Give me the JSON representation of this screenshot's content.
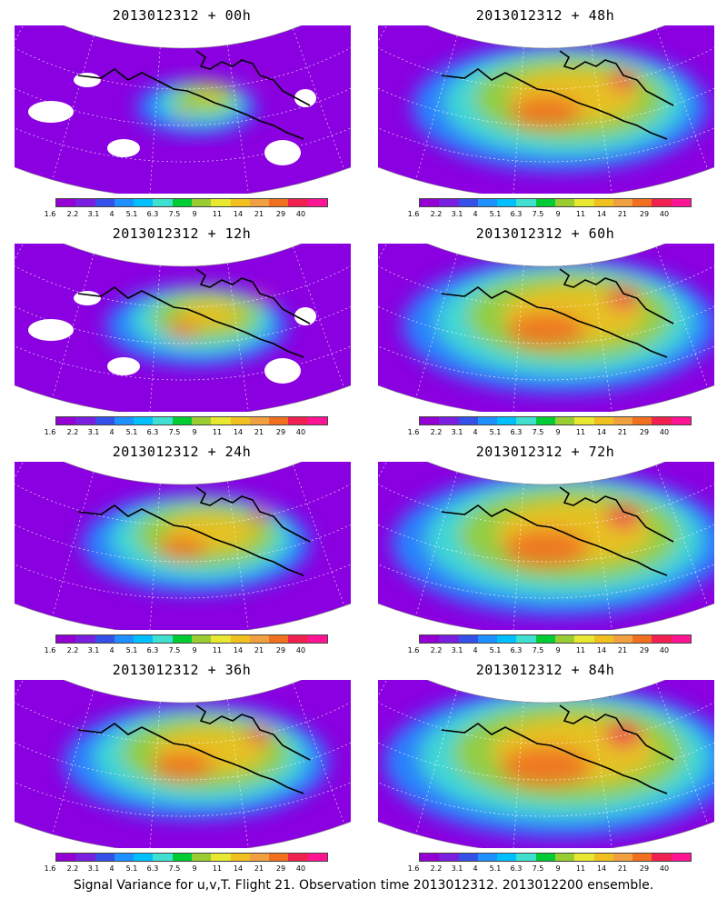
{
  "caption": "Signal Variance for u,v,T. Flight 21. Observation time 2013012312. 2013012200 ensemble.",
  "colorbar": {
    "labels": [
      "1.6",
      "2.2",
      "3.1",
      "4",
      "5.1",
      "6.3",
      "7.5",
      "9",
      "11",
      "14",
      "21",
      "29",
      "40"
    ],
    "colors": [
      "#9400d3",
      "#7a1ee0",
      "#3550e8",
      "#1e90ff",
      "#00bfff",
      "#40e0d0",
      "#00cc33",
      "#9acd32",
      "#e8e830",
      "#f0c020",
      "#f0a040",
      "#f07020",
      "#f02050",
      "#ff1493"
    ]
  },
  "panels": [
    {
      "title": "2013012312 + 00h",
      "lead_hours": 0,
      "intensity": 0.15
    },
    {
      "title": "2013012312 + 48h",
      "lead_hours": 48,
      "intensity": 0.72
    },
    {
      "title": "2013012312 + 12h",
      "lead_hours": 12,
      "intensity": 0.35
    },
    {
      "title": "2013012312 + 60h",
      "lead_hours": 60,
      "intensity": 0.78
    },
    {
      "title": "2013012312 + 24h",
      "lead_hours": 24,
      "intensity": 0.5
    },
    {
      "title": "2013012312 + 72h",
      "lead_hours": 72,
      "intensity": 0.85
    },
    {
      "title": "2013012312 + 36h",
      "lead_hours": 36,
      "intensity": 0.62
    },
    {
      "title": "2013012312 + 84h",
      "lead_hours": 84,
      "intensity": 0.9
    }
  ]
}
